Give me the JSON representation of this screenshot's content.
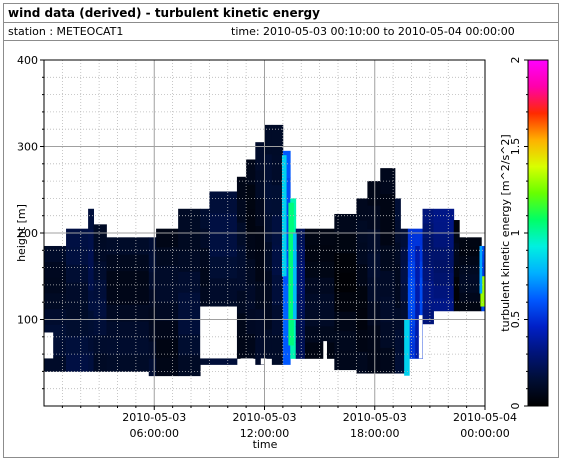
{
  "header": {
    "title": "wind data (derived) - turbulent kinetic energy",
    "station": "station : METEOCAT1",
    "time_range": "time: 2010-05-03 00:10:00 to 2010-05-04 00:00:00"
  },
  "chart_data": {
    "type": "heatmap",
    "title": "wind data (derived) - turbulent kinetic energy",
    "xlabel": "time",
    "ylabel": "height [m]",
    "colorbar_label": "turbulent kinetic energy [m^2/s^2]",
    "xlim_hours": [
      0,
      24
    ],
    "ylim": [
      0,
      400
    ],
    "clim": [
      0,
      2
    ],
    "x_ticks": [
      {
        "hour": 6,
        "line1": "2010-05-03",
        "line2": "06:00:00"
      },
      {
        "hour": 12,
        "line1": "2010-05-03",
        "line2": "12:00:00"
      },
      {
        "hour": 18,
        "line1": "2010-05-03",
        "line2": "18:00:00"
      },
      {
        "hour": 24,
        "line1": "2010-05-04",
        "line2": "00:00:00"
      }
    ],
    "y_ticks": [
      100,
      200,
      300,
      400
    ],
    "colorbar_ticks": [
      "0",
      "0.5",
      "1",
      "1.5",
      "2"
    ],
    "grid": true,
    "colormap": [
      "#000000",
      "#000e35",
      "#00147a",
      "#0020c8",
      "#0059ff",
      "#00b0ff",
      "#00f0e0",
      "#00ff66",
      "#68ff00",
      "#d8ff00",
      "#ffb000",
      "#ff2a00",
      "#ff00aa",
      "#ff00ff"
    ],
    "columns": [
      {
        "t0": 0.0,
        "t1": 1.2,
        "ybot": 40,
        "ytop": 185,
        "tke": 0.12
      },
      {
        "t0": 1.2,
        "t1": 2.4,
        "ybot": 40,
        "ytop": 205,
        "tke": 0.15
      },
      {
        "t0": 2.4,
        "t1": 2.7,
        "ybot": 40,
        "ytop": 228,
        "tke": 0.18
      },
      {
        "t0": 2.7,
        "t1": 3.4,
        "ybot": 40,
        "ytop": 210,
        "tke": 0.14
      },
      {
        "t0": 3.4,
        "t1": 5.7,
        "ybot": 40,
        "ytop": 195,
        "tke": 0.1
      },
      {
        "t0": 5.7,
        "t1": 6.1,
        "ybot": 35,
        "ytop": 195,
        "tke": 0.12
      },
      {
        "t0": 6.1,
        "t1": 7.3,
        "ybot": 35,
        "ytop": 205,
        "tke": 0.09
      },
      {
        "t0": 7.3,
        "t1": 8.5,
        "ybot": 35,
        "ytop": 228,
        "tke": 0.13
      },
      {
        "t0": 8.5,
        "t1": 9.0,
        "ybot": 48,
        "ytop": 228,
        "tke": 0.11
      },
      {
        "t0": 9.0,
        "t1": 10.5,
        "ybot": 48,
        "ytop": 248,
        "tke": 0.15
      },
      {
        "t0": 10.5,
        "t1": 11.0,
        "ybot": 55,
        "ytop": 265,
        "tke": 0.1
      },
      {
        "t0": 11.0,
        "t1": 11.5,
        "ybot": 55,
        "ytop": 285,
        "tke": 0.08
      },
      {
        "t0": 11.5,
        "t1": 12.0,
        "ybot": 48,
        "ytop": 305,
        "tke": 0.09
      },
      {
        "t0": 12.0,
        "t1": 12.4,
        "ybot": 55,
        "ytop": 325,
        "tke": 0.12
      },
      {
        "t0": 12.4,
        "t1": 13.0,
        "ybot": 48,
        "ytop": 325,
        "tke": 0.15
      },
      {
        "t0": 13.0,
        "t1": 13.4,
        "ybot": 48,
        "ytop": 295,
        "tke": 0.6
      },
      {
        "t0": 13.4,
        "t1": 13.7,
        "ybot": 55,
        "ytop": 240,
        "tke": 0.95
      },
      {
        "t0": 13.7,
        "t1": 14.2,
        "ybot": 55,
        "ytop": 205,
        "tke": 0.25
      },
      {
        "t0": 14.2,
        "t1": 15.8,
        "ybot": 55,
        "ytop": 205,
        "tke": 0.08
      },
      {
        "t0": 15.8,
        "t1": 17.0,
        "ybot": 42,
        "ytop": 222,
        "tke": 0.05
      },
      {
        "t0": 17.0,
        "t1": 17.6,
        "ybot": 38,
        "ytop": 240,
        "tke": 0.07
      },
      {
        "t0": 17.6,
        "t1": 18.3,
        "ybot": 38,
        "ytop": 260,
        "tke": 0.1
      },
      {
        "t0": 18.3,
        "t1": 19.1,
        "ybot": 38,
        "ytop": 275,
        "tke": 0.09
      },
      {
        "t0": 19.1,
        "t1": 19.4,
        "ybot": 38,
        "ytop": 240,
        "tke": 0.12
      },
      {
        "t0": 19.4,
        "t1": 19.8,
        "ybot": 38,
        "ytop": 205,
        "tke": 0.16
      },
      {
        "t0": 19.8,
        "t1": 20.6,
        "ybot": 55,
        "ytop": 205,
        "tke": 0.55
      },
      {
        "t0": 20.6,
        "t1": 21.2,
        "ybot": 95,
        "ytop": 228,
        "tke": 0.3
      },
      {
        "t0": 21.2,
        "t1": 22.3,
        "ybot": 110,
        "ytop": 228,
        "tke": 0.3
      },
      {
        "t0": 22.3,
        "t1": 22.6,
        "ybot": 110,
        "ytop": 215,
        "tke": 0.05
      },
      {
        "t0": 22.6,
        "t1": 23.8,
        "ybot": 110,
        "ytop": 195,
        "tke": 0.08
      },
      {
        "t0": 23.8,
        "t1": 24.0,
        "ybot": 110,
        "ytop": 185,
        "tke": 0.55
      }
    ],
    "gaps": [
      {
        "t0": 0.0,
        "t1": 0.5,
        "ybot": 55,
        "ytop": 85
      },
      {
        "t0": 8.5,
        "t1": 10.5,
        "ybot": 55,
        "ytop": 115
      },
      {
        "t0": 10.7,
        "t1": 11.4,
        "ybot": 48,
        "ytop": 55
      },
      {
        "t0": 11.8,
        "t1": 12.1,
        "ybot": 48,
        "ytop": 55
      },
      {
        "t0": 15.2,
        "t1": 15.4,
        "ybot": 42,
        "ytop": 75
      },
      {
        "t0": 20.4,
        "t1": 20.6,
        "ybot": 55,
        "ytop": 105
      }
    ],
    "highlights": [
      {
        "t0": 12.95,
        "t1": 13.2,
        "ybot": 150,
        "ytop": 290,
        "tke": 0.85
      },
      {
        "t0": 13.3,
        "t1": 13.6,
        "ybot": 70,
        "ytop": 235,
        "tke": 1.05
      },
      {
        "t0": 13.55,
        "t1": 13.75,
        "ybot": 100,
        "ytop": 200,
        "tke": 0.8
      },
      {
        "t0": 19.6,
        "t1": 19.9,
        "ybot": 35,
        "ytop": 100,
        "tke": 0.85
      },
      {
        "t0": 20.2,
        "t1": 20.45,
        "ybot": 55,
        "ytop": 185,
        "tke": 0.4
      },
      {
        "t0": 23.75,
        "t1": 24.0,
        "ybot": 115,
        "ytop": 150,
        "tke": 1.3
      },
      {
        "t0": 23.7,
        "t1": 23.85,
        "ybot": 130,
        "ytop": 185,
        "tke": 0.75
      }
    ]
  }
}
